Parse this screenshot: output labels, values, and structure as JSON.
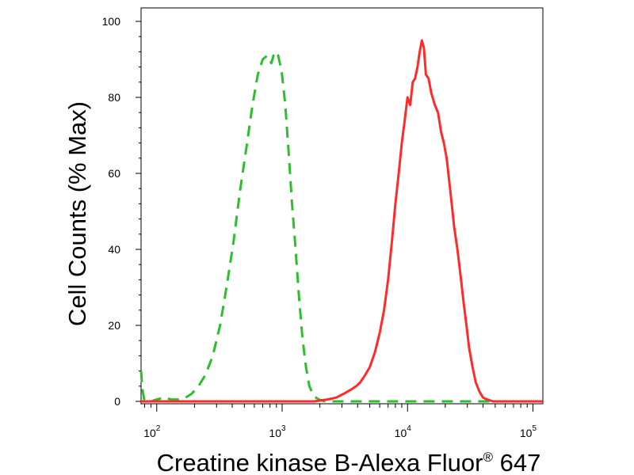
{
  "chart_data": {
    "type": "line",
    "title": "",
    "xlabel": "Creatine kinase B-Alexa Fluor",
    "xlabel_sup": "®",
    "xlabel_suffix": " 647",
    "ylabel": "Cell Counts (% Max)",
    "x_scale": "log",
    "xlim": [
      75,
      120000
    ],
    "ylim": [
      0,
      100
    ],
    "grid": false,
    "legend": "none",
    "y_ticks": [
      0,
      20,
      40,
      60,
      80,
      100
    ],
    "y_tick_labels": [
      "0",
      "20",
      "40",
      "60",
      "80",
      "100"
    ],
    "x_ticks": [
      {
        "base": "10",
        "exp": "2",
        "value": 100
      },
      {
        "base": "10",
        "exp": "3",
        "value": 1000
      },
      {
        "base": "10",
        "exp": "4",
        "value": 10000
      },
      {
        "base": "10",
        "exp": "5",
        "value": 100000
      }
    ],
    "series": [
      {
        "color": "#2bbf2b",
        "style": "dashed",
        "points": [
          [
            75,
            8
          ],
          [
            77,
            3
          ],
          [
            80,
            0
          ],
          [
            90,
            0
          ],
          [
            100,
            0.5
          ],
          [
            115,
            1
          ],
          [
            130,
            0.5
          ],
          [
            150,
            0.5
          ],
          [
            170,
            1
          ],
          [
            190,
            2
          ],
          [
            215,
            4
          ],
          [
            245,
            7
          ],
          [
            280,
            12
          ],
          [
            320,
            20
          ],
          [
            360,
            30
          ],
          [
            410,
            42
          ],
          [
            460,
            55
          ],
          [
            520,
            67
          ],
          [
            580,
            78
          ],
          [
            640,
            86
          ],
          [
            700,
            90
          ],
          [
            760,
            91
          ],
          [
            820,
            89
          ],
          [
            870,
            92
          ],
          [
            930,
            91
          ],
          [
            990,
            87
          ],
          [
            1060,
            78
          ],
          [
            1130,
            65
          ],
          [
            1200,
            52
          ],
          [
            1280,
            40
          ],
          [
            1360,
            28
          ],
          [
            1450,
            17
          ],
          [
            1550,
            9
          ],
          [
            1650,
            4
          ],
          [
            1780,
            1.5
          ],
          [
            1950,
            0.5
          ],
          [
            2200,
            0
          ],
          [
            3000,
            0
          ],
          [
            10000,
            0
          ],
          [
            40000,
            0
          ],
          [
            100000,
            0
          ],
          [
            120000,
            0
          ]
        ]
      },
      {
        "color": "#ff2a2a",
        "style": "solid",
        "points": [
          [
            75,
            0
          ],
          [
            800,
            0
          ],
          [
            1200,
            0
          ],
          [
            1800,
            0
          ],
          [
            2300,
            0.5
          ],
          [
            2700,
            1
          ],
          [
            3100,
            2
          ],
          [
            3500,
            3
          ],
          [
            3900,
            4
          ],
          [
            4200,
            5
          ],
          [
            4600,
            7
          ],
          [
            5000,
            9
          ],
          [
            5500,
            13
          ],
          [
            6000,
            18
          ],
          [
            6500,
            24
          ],
          [
            7000,
            32
          ],
          [
            7500,
            42
          ],
          [
            8000,
            52
          ],
          [
            8500,
            60
          ],
          [
            9000,
            68
          ],
          [
            9500,
            74
          ],
          [
            10000,
            80
          ],
          [
            10500,
            78
          ],
          [
            11000,
            84
          ],
          [
            11500,
            85
          ],
          [
            12000,
            88
          ],
          [
            12500,
            92
          ],
          [
            13000,
            95
          ],
          [
            13500,
            93
          ],
          [
            14000,
            86
          ],
          [
            14700,
            85
          ],
          [
            15500,
            81
          ],
          [
            16500,
            78
          ],
          [
            17500,
            76
          ],
          [
            18500,
            71
          ],
          [
            19500,
            68
          ],
          [
            20500,
            64
          ],
          [
            21500,
            58
          ],
          [
            22500,
            52
          ],
          [
            23500,
            46
          ],
          [
            25000,
            40
          ],
          [
            26500,
            33
          ],
          [
            28000,
            26
          ],
          [
            29500,
            20
          ],
          [
            31000,
            14
          ],
          [
            33000,
            9
          ],
          [
            35000,
            5
          ],
          [
            37500,
            2.5
          ],
          [
            40000,
            1
          ],
          [
            43000,
            0.5
          ],
          [
            48000,
            0
          ],
          [
            60000,
            0
          ],
          [
            120000,
            0
          ]
        ]
      }
    ]
  }
}
